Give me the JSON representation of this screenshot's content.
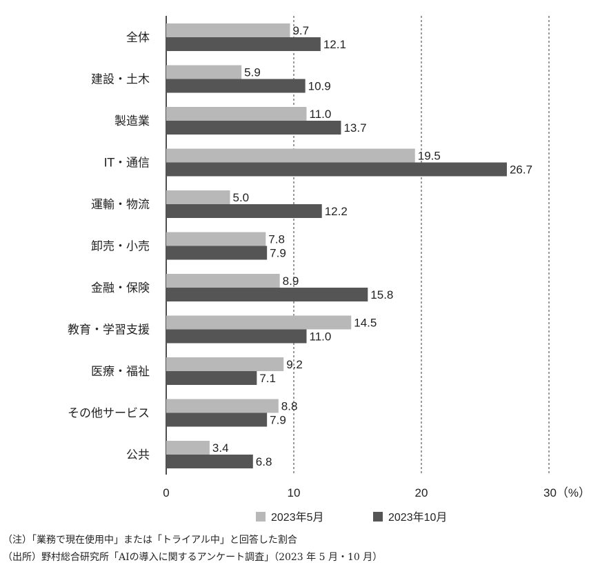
{
  "chart_data": {
    "type": "bar",
    "orientation": "horizontal",
    "categories": [
      "全体",
      "建設・土木",
      "製造業",
      "IT・通信",
      "運輸・物流",
      "卸売・小売",
      "金融・保険",
      "教育・学習支援",
      "医療・福祉",
      "その他サービス",
      "公共"
    ],
    "series": [
      {
        "name": "2023年5月",
        "color": "#b8b8b8",
        "values": [
          9.7,
          5.9,
          11.0,
          19.5,
          5.0,
          7.8,
          8.9,
          14.5,
          9.2,
          8.8,
          3.4
        ]
      },
      {
        "name": "2023年10月",
        "color": "#555555",
        "values": [
          12.1,
          10.9,
          13.7,
          26.7,
          12.2,
          7.9,
          15.8,
          11.0,
          7.1,
          7.9,
          6.8
        ]
      }
    ],
    "value_labels_1": [
      "9.7",
      "5.9",
      "11.0",
      "19.5",
      "5.0",
      "7.8",
      "8.9",
      "14.5",
      "9.2",
      "8.8",
      "3.4"
    ],
    "value_labels_2": [
      "12.1",
      "10.9",
      "13.7",
      "26.7",
      "12.2",
      "7.9",
      "15.8",
      "11.0",
      "7.1",
      "7.9",
      "6.8"
    ],
    "xlim": [
      0,
      30
    ],
    "xticks": [
      0,
      10,
      20,
      30
    ],
    "xtick_labels": [
      "0",
      "10",
      "20",
      "30（%）"
    ],
    "grid": "vertical dashed",
    "legend_position": "bottom"
  },
  "notes": {
    "note": "（注）「業務で現在使用中」または「トライアル中」と回答した割合",
    "source": "（出所）野村総合研究所「AIの導入に関するアンケート調査」（2023 年 5 月・10 月）"
  }
}
